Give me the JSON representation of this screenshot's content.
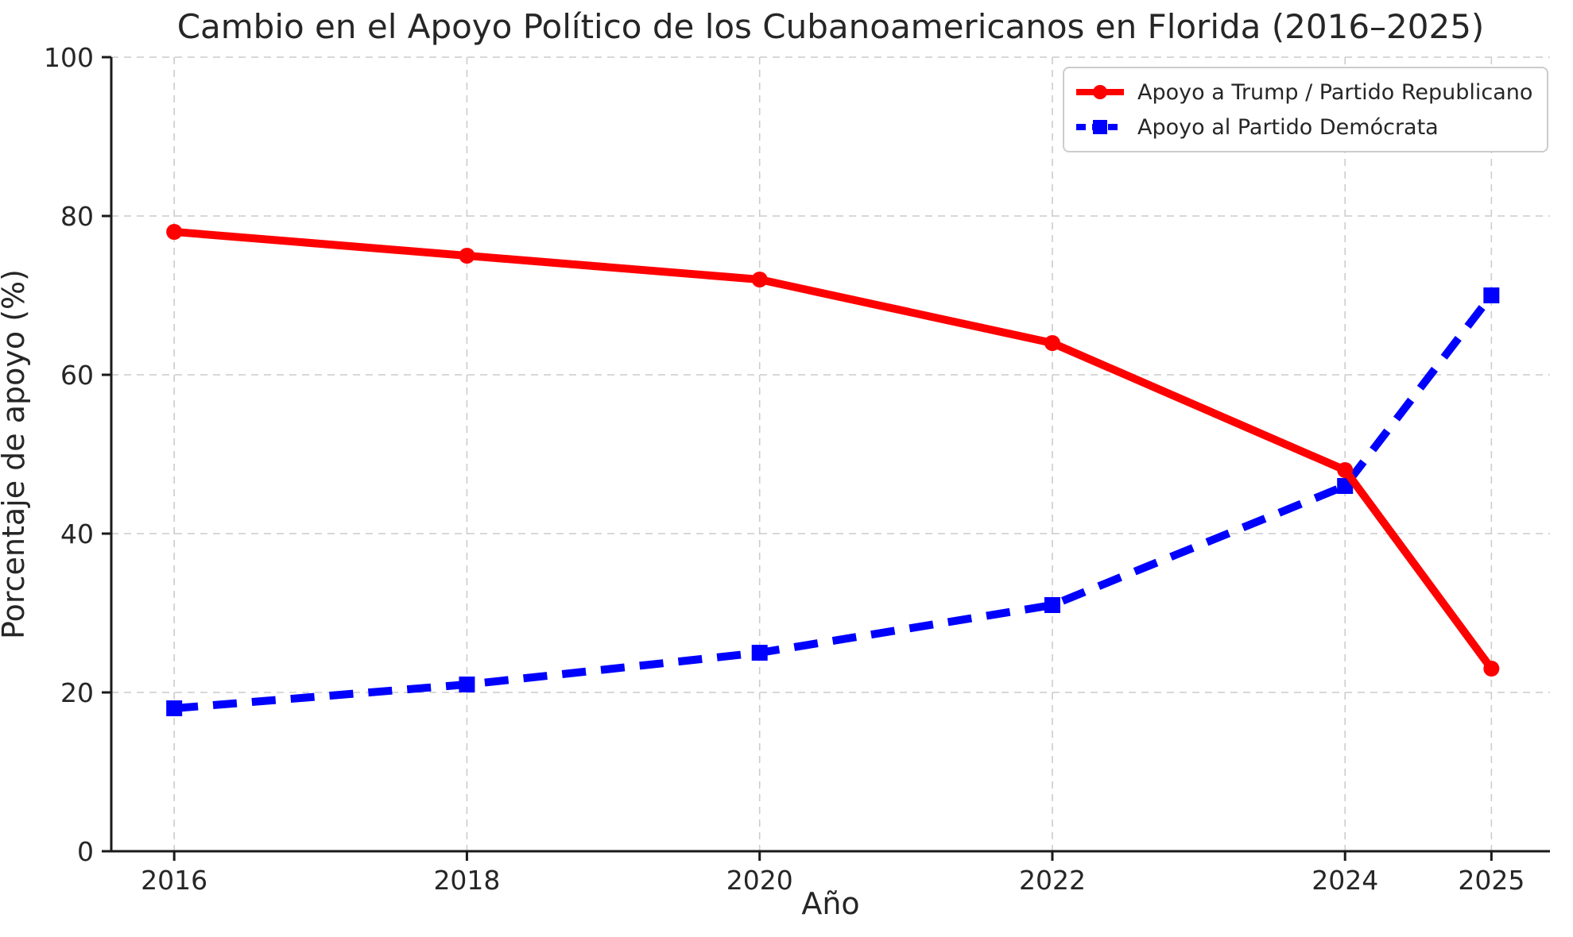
{
  "chart_data": {
    "type": "line",
    "title": "Cambio en el Apoyo Político de los Cubanoamericanos en Florida (2016–2025)",
    "xlabel": "Año",
    "ylabel": "Porcentaje de apoyo (%)",
    "x": [
      2016,
      2018,
      2020,
      2022,
      2024,
      2025
    ],
    "x_tick_labels": [
      "2016",
      "2018",
      "2020",
      "2022",
      "2024",
      "2025"
    ],
    "yticks": [
      0,
      20,
      40,
      60,
      80,
      100
    ],
    "ylim": [
      0,
      100
    ],
    "xlim": [
      2015.57,
      2025.4
    ],
    "grid": true,
    "grid_style": "dashed",
    "legend_position": "upper right",
    "series": [
      {
        "name": "Apoyo a Trump / Partido Republicano",
        "values": [
          78,
          75,
          72,
          64,
          48,
          23
        ],
        "color": "#ff0000",
        "line_style": "solid",
        "marker": "circle"
      },
      {
        "name": "Apoyo al Partido Demócrata",
        "values": [
          18,
          21,
          25,
          31,
          46,
          70
        ],
        "color": "#0000ff",
        "line_style": "dashed",
        "marker": "square"
      }
    ]
  },
  "colors": {
    "background": "#ffffff",
    "grid": "#cccccc",
    "spine": "#1a1a1a",
    "text": "#262626",
    "legend_border": "#cccccc"
  }
}
